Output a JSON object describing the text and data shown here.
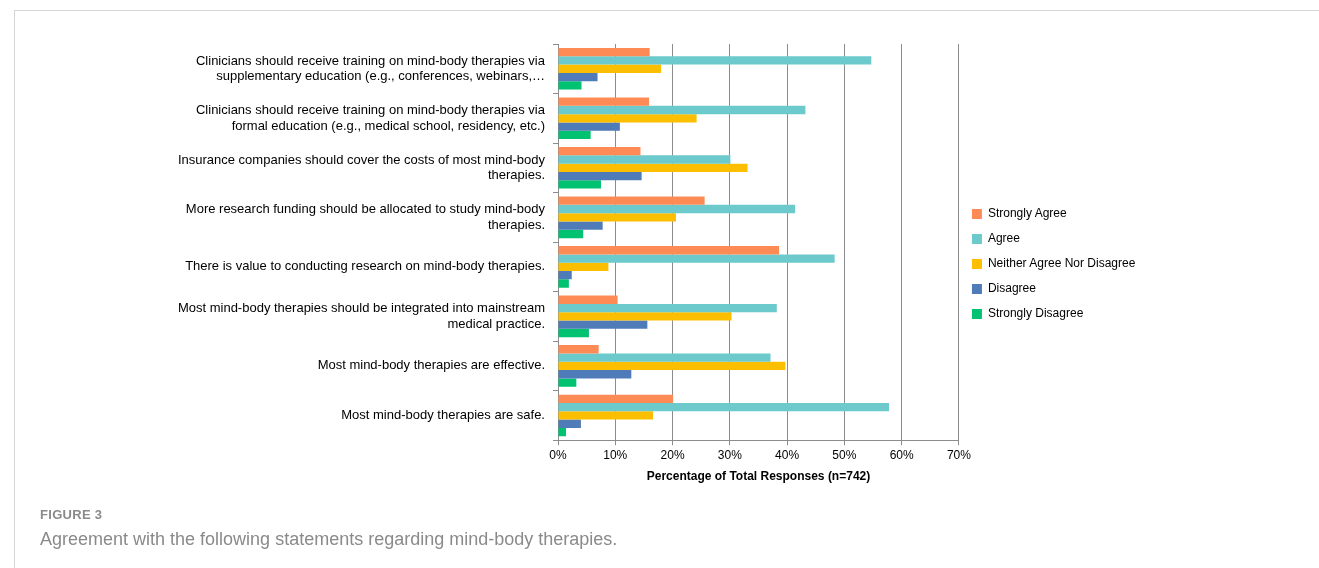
{
  "chart_data": {
    "type": "bar",
    "orientation": "horizontal",
    "categories": [
      "Clinicians should receive training on mind-body therapies via supplementary education (e.g., conferences, webinars,…",
      "Clinicians should receive training on mind-body therapies via formal education (e.g., medical school, residency, etc.)",
      "Insurance companies should cover the costs of most mind-body therapies.",
      "More research funding should be allocated to study mind-body therapies.",
      "There is value to conducting research on mind-body therapies.",
      "Most mind-body therapies should be integrated into mainstream medical practice.",
      "Most mind-body therapies are effective.",
      "Most mind-body therapies are safe."
    ],
    "series": [
      {
        "name": "Strongly Agree",
        "color": "#fe8b55",
        "values": [
          16.0,
          15.9,
          14.4,
          25.6,
          38.6,
          10.4,
          7.1,
          20.1
        ]
      },
      {
        "name": "Agree",
        "color": "#6cc9cc",
        "values": [
          54.7,
          43.2,
          30.1,
          41.4,
          48.3,
          38.2,
          37.1,
          57.8
        ]
      },
      {
        "name": "Neither Agree Nor Disagree",
        "color": "#fbbf00",
        "values": [
          18.0,
          24.2,
          33.1,
          20.6,
          8.8,
          30.3,
          39.7,
          16.6
        ]
      },
      {
        "name": "Disagree",
        "color": "#4f7bb8",
        "values": [
          6.9,
          10.8,
          14.6,
          7.8,
          2.4,
          15.6,
          12.8,
          4.0
        ]
      },
      {
        "name": "Strongly Disagree",
        "color": "#00c271",
        "values": [
          4.1,
          5.7,
          7.5,
          4.4,
          1.9,
          5.4,
          3.2,
          1.4
        ]
      }
    ],
    "xlim": [
      0,
      70
    ],
    "xticks": [
      {
        "value": 0,
        "label": "0%"
      },
      {
        "value": 10,
        "label": "10%"
      },
      {
        "value": 20,
        "label": "20%"
      },
      {
        "value": 30,
        "label": "30%"
      },
      {
        "value": 40,
        "label": "40%"
      },
      {
        "value": 50,
        "label": "50%"
      },
      {
        "value": 60,
        "label": "60%"
      },
      {
        "value": 70,
        "label": "70%"
      }
    ],
    "xlabel": "Percentage of Total Responses (n=742)",
    "grid": "x",
    "legend": "right",
    "annotations": [
      "FIGURE 3",
      "Agreement with the following statements regarding mind-body therapies."
    ]
  }
}
